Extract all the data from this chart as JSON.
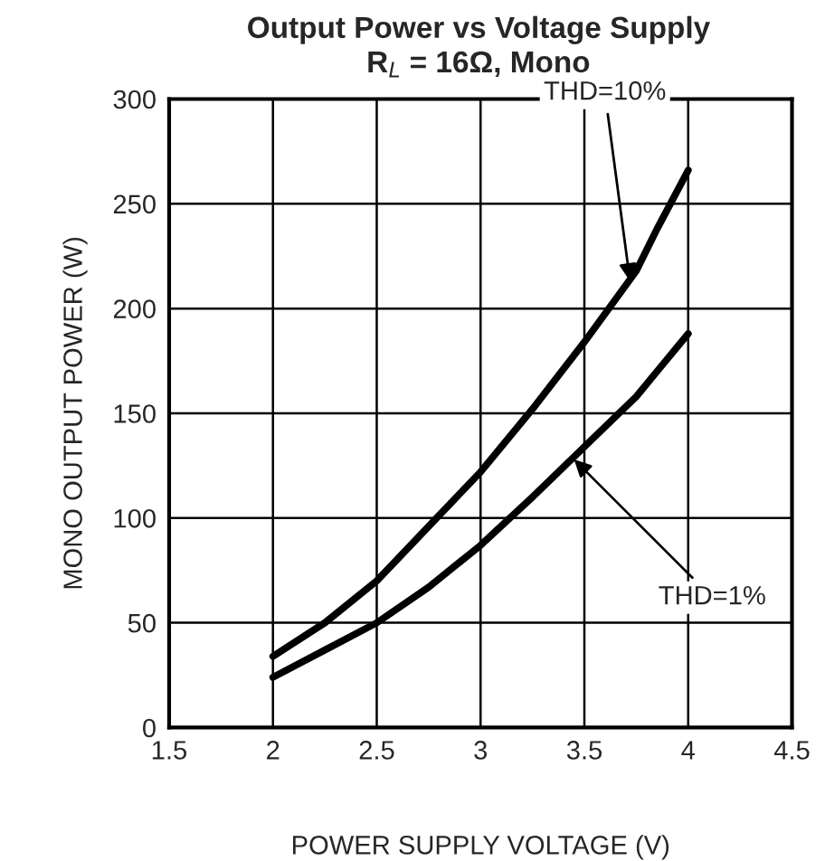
{
  "chart_data": {
    "type": "line",
    "title": "Output Power vs Voltage Supply",
    "subtitle": "R$_{L}$ = 16Ω, Mono",
    "xlabel": "POWER SUPPLY VOLTAGE (V)",
    "ylabel": "MONO OUTPUT POWER (W)",
    "series": [
      {
        "color": "#000000",
        "x": [
          2,
          2.25,
          2.5,
          2.75,
          3,
          3.25,
          3.5,
          3.75,
          3.85,
          4
        ],
        "values": [
          34,
          50,
          70,
          96,
          122,
          152,
          184,
          218,
          238,
          266
        ]
      },
      {
        "color": "#000000",
        "x": [
          2,
          2.25,
          2.5,
          2.75,
          3,
          3.25,
          3.5,
          3.75,
          3.85,
          4
        ],
        "values": [
          24,
          37,
          50,
          67,
          87,
          110,
          134,
          158,
          170,
          188
        ]
      }
    ],
    "annotations": [
      {
        "text": "THD=10%",
        "x": 3.72,
        "y": 213
      },
      {
        "text": "THD=1%",
        "x": 3.45,
        "y": 128
      }
    ],
    "xlim": [
      1.5,
      4.5
    ],
    "xticks": [
      1.5,
      2,
      2.5,
      3,
      3.5,
      4,
      4.5
    ],
    "ylim": [
      0,
      300
    ],
    "yticks": [
      0,
      50,
      100,
      150,
      200,
      250,
      300
    ],
    "grid": true,
    "legend": false,
    "marker": "none",
    "line_style": "solid"
  }
}
